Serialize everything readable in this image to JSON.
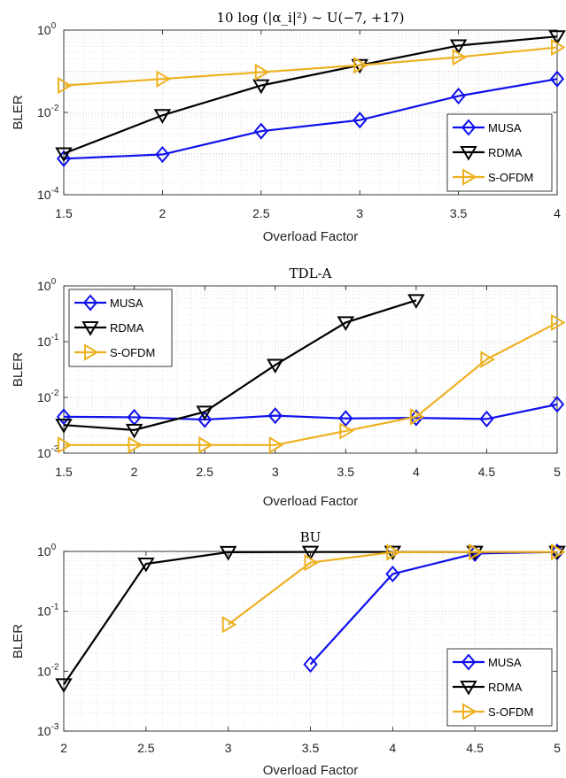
{
  "chart_data": [
    {
      "type": "line",
      "title": "10 log (|α_i|²) ~ U(−7, +17)",
      "xlabel": "Overload Factor",
      "ylabel": "BLER",
      "yscale": "log",
      "xlim": [
        1.5,
        4
      ],
      "ylim_exp": [
        -4,
        0
      ],
      "x_ticks": [
        "1.5",
        "2",
        "2.5",
        "3",
        "3.5",
        "4"
      ],
      "x_tick_values": [
        1.5,
        2,
        2.5,
        3,
        3.5,
        4
      ],
      "y_ticks": [
        {
          "base": "10",
          "exp": "0"
        },
        {
          "base": "10",
          "exp": "-2"
        },
        {
          "base": "10",
          "exp": "-4"
        }
      ],
      "y_tick_values": [
        0,
        -2,
        -4
      ],
      "grid": true,
      "legend_position": "bottom-right",
      "x": [
        1.5,
        2,
        2.5,
        3,
        3.5,
        4
      ],
      "series": [
        {
          "name": "MUSA",
          "color": "#1010ee",
          "marker": "diamond",
          "values": [
            0.00075,
            0.00095,
            0.0035,
            0.0065,
            0.025,
            0.065
          ]
        },
        {
          "name": "RDMA",
          "color": "#000000",
          "marker": "triangle-down",
          "values": [
            0.001,
            0.0085,
            0.045,
            0.14,
            0.42,
            0.7
          ]
        },
        {
          "name": "S-OFDM",
          "color": "#edb120",
          "marker": "triangle-right",
          "values": [
            0.045,
            0.065,
            0.095,
            0.14,
            0.22,
            0.38
          ]
        }
      ]
    },
    {
      "type": "line",
      "title": "TDL-A",
      "xlabel": "Overload Factor",
      "ylabel": "BLER",
      "yscale": "log",
      "xlim": [
        1.5,
        5
      ],
      "ylim_exp": [
        -3,
        0
      ],
      "x_ticks": [
        "1.5",
        "2",
        "2.5",
        "3",
        "3.5",
        "4",
        "4.5",
        "5"
      ],
      "x_tick_values": [
        1.5,
        2,
        2.5,
        3,
        3.5,
        4,
        4.5,
        5
      ],
      "y_ticks": [
        {
          "base": "10",
          "exp": "0"
        },
        {
          "base": "10",
          "exp": "-1"
        },
        {
          "base": "10",
          "exp": "-2"
        },
        {
          "base": "10",
          "exp": "-3"
        }
      ],
      "y_tick_values": [
        0,
        -1,
        -2,
        -3
      ],
      "grid": true,
      "legend_position": "top-left",
      "x": [
        1.5,
        2,
        2.5,
        3,
        3.5,
        4,
        4.5,
        5
      ],
      "series": [
        {
          "name": "MUSA",
          "color": "#1010ee",
          "marker": "diamond",
          "values": [
            0.0045,
            0.0044,
            0.004,
            0.0047,
            0.0042,
            0.0043,
            0.0041,
            0.0075
          ]
        },
        {
          "name": "RDMA",
          "color": "#000000",
          "marker": "triangle-down",
          "values": [
            0.0032,
            0.0026,
            0.0055,
            0.038,
            0.22,
            0.55,
            null,
            null
          ]
        },
        {
          "name": "S-OFDM",
          "color": "#edb120",
          "marker": "triangle-right",
          "values": [
            0.0014,
            0.0014,
            0.0014,
            0.0014,
            0.0025,
            0.0045,
            0.048,
            0.22
          ]
        }
      ]
    },
    {
      "type": "line",
      "title": "BU",
      "xlabel": "Overload Factor",
      "ylabel": "BLER",
      "yscale": "log",
      "xlim": [
        2,
        5
      ],
      "ylim_exp": [
        -3,
        0
      ],
      "x_ticks": [
        "2",
        "2.5",
        "3",
        "3.5",
        "4",
        "4.5",
        "5"
      ],
      "x_tick_values": [
        2,
        2.5,
        3,
        3.5,
        4,
        4.5,
        5
      ],
      "y_ticks": [
        {
          "base": "10",
          "exp": "0"
        },
        {
          "base": "10",
          "exp": "-1"
        },
        {
          "base": "10",
          "exp": "-2"
        },
        {
          "base": "10",
          "exp": "-3"
        }
      ],
      "y_tick_values": [
        0,
        -1,
        -2,
        -3
      ],
      "grid": true,
      "legend_position": "bottom-right",
      "x": [
        2,
        2.5,
        3,
        3.5,
        4,
        4.5,
        5
      ],
      "series": [
        {
          "name": "MUSA",
          "color": "#1010ee",
          "marker": "diamond",
          "values": [
            null,
            null,
            null,
            0.013,
            0.42,
            0.92,
            0.98
          ]
        },
        {
          "name": "RDMA",
          "color": "#000000",
          "marker": "triangle-down",
          "values": [
            0.006,
            0.62,
            0.97,
            0.98,
            0.98,
            0.98,
            0.98
          ]
        },
        {
          "name": "S-OFDM",
          "color": "#edb120",
          "marker": "triangle-right",
          "values": [
            null,
            null,
            0.06,
            0.65,
            0.97,
            0.98,
            0.98
          ]
        }
      ]
    }
  ]
}
